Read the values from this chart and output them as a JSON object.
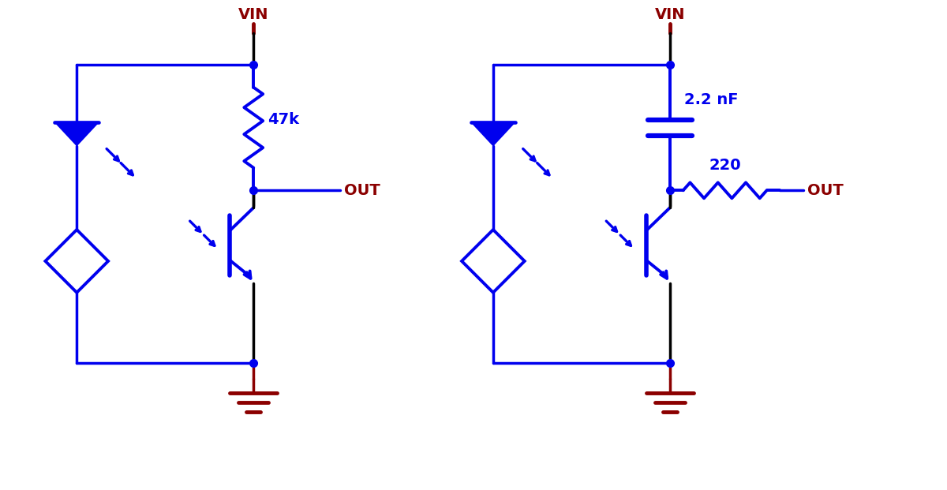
{
  "bg_color": "#ffffff",
  "blue": "#0000ee",
  "dark_red": "#8b0000",
  "wire_color": "#000000",
  "lw_wire": 2.5,
  "lw_comp": 2.8,
  "lw_comp_thick": 4.0,
  "dot_size": 7,
  "fig_width": 12.0,
  "fig_height": 6.21,
  "label_47k": "47k",
  "label_220": "220",
  "label_cap": "2.2 nF",
  "label_vin": "VIN",
  "label_out": "OUT"
}
